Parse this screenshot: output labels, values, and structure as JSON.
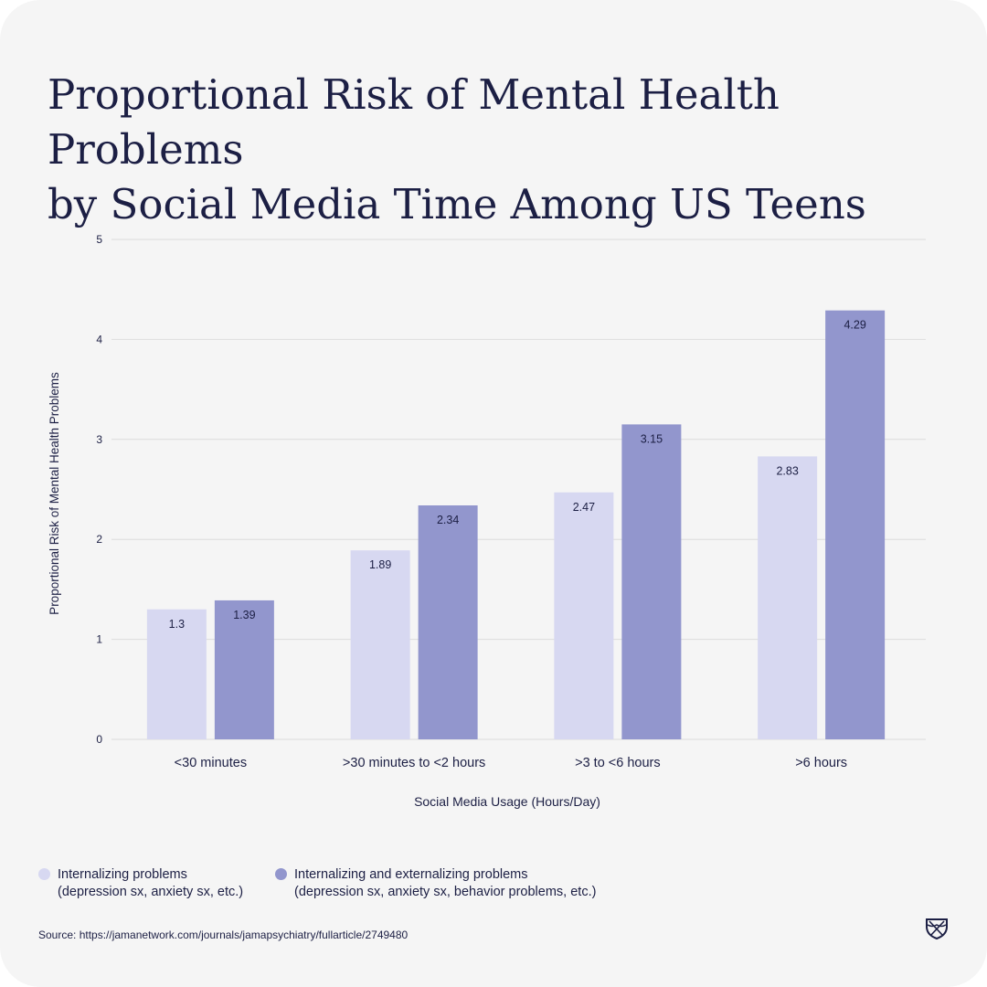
{
  "title_lines": [
    "Proportional Risk of Mental Health Problems",
    "by Social Media Time Among US Teens"
  ],
  "chart_data": {
    "type": "bar",
    "title": "Proportional Risk of Mental Health Problems by Social Media Time Among US Teens",
    "xlabel": "Social Media Usage (Hours/Day)",
    "ylabel": "Proportional Risk of Mental Health Problems",
    "ylim": [
      0,
      5
    ],
    "yticks": [
      0,
      1,
      2,
      3,
      4,
      5
    ],
    "grid": true,
    "legend_position": "bottom-left",
    "categories": [
      "<30 minutes",
      ">30 minutes to <2 hours",
      ">3 to <6 hours",
      ">6 hours"
    ],
    "series": [
      {
        "name": "Internalizing problems (depression sx, anxiety sx, etc.)",
        "values": [
          1.3,
          1.89,
          2.47,
          2.83
        ],
        "labels": [
          "1.3",
          "1.89",
          "2.47",
          "2.83"
        ],
        "color": "#d7d8f1"
      },
      {
        "name": "Internalizing and externalizing problems (depression sx, anxiety sx, behavior problems, etc.)",
        "values": [
          1.39,
          2.34,
          3.15,
          4.29
        ],
        "labels": [
          "1.39",
          "2.34",
          "3.15",
          "4.29"
        ],
        "color": "#9296cd"
      }
    ]
  },
  "legend": [
    {
      "line1": "Internalizing problems",
      "line2": "(depression sx, anxiety sx, etc.)",
      "color": "#d7d8f1"
    },
    {
      "line1": "Internalizing and externalizing problems",
      "line2": "(depression sx, anxiety sx, behavior problems, etc.)",
      "color": "#9296cd"
    }
  ],
  "source": "Source: https://jamanetwork.com/journals/jamapsychiatry/fullarticle/2749480",
  "logo_icon": "shield-crest-icon",
  "colors": {
    "background": "#f5f5f5",
    "text": "#1c1f44",
    "grid": "#dcdcdc"
  }
}
